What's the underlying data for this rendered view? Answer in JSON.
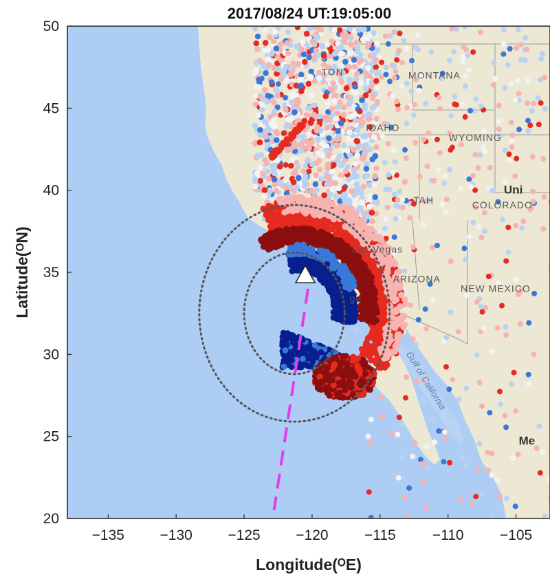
{
  "figure": {
    "title": "2017/08/24 UT:19:05:00",
    "xlabel": "Longitude(ᴼE)",
    "ylabel": "Latitude(ᴼN)"
  },
  "chart_data": {
    "type": "scatter",
    "title": "2017/08/24 UT:19:05:00",
    "xlabel": "Longitude(ᴼE)",
    "ylabel": "Latitude(ᴼN)",
    "xlim": [
      -138,
      -102.5
    ],
    "ylim": [
      20,
      50
    ],
    "xticks": [
      -135,
      -130,
      -125,
      -120,
      -115,
      -110,
      -105
    ],
    "yticks": [
      20,
      25,
      30,
      35,
      40,
      45,
      50
    ],
    "xtick_labels": [
      "−135",
      "−130",
      "−125",
      "−120",
      "−115",
      "−110",
      "−105"
    ],
    "ytick_labels": [
      "20",
      "25",
      "30",
      "35",
      "40",
      "45",
      "50"
    ],
    "grid": false,
    "marker": {
      "shape": "triangle",
      "lon": -120.5,
      "lat": 34.7,
      "color": "#ffffff"
    },
    "circles": [
      {
        "center_lon": -121.3,
        "center_lat": 32.5,
        "radius_lon": 7.0,
        "radius_lat": 6.6,
        "style": "dotted",
        "color": "#555555"
      },
      {
        "center_lon": -121.3,
        "center_lat": 32.5,
        "radius_lon": 3.7,
        "radius_lat": 3.7,
        "style": "dotted",
        "color": "#555555"
      }
    ],
    "track": {
      "points": [
        [
          -120.3,
          34.0
        ],
        [
          -122.8,
          20.5
        ]
      ],
      "style": "dashed",
      "color": "#e040e8"
    },
    "colors": {
      "positive_strong": "#8b0f0f",
      "positive": "#e52a20",
      "positive_light": "#f6b3b0",
      "neutral": "#f3f3f3",
      "negative_light": "#b8d2f2",
      "negative": "#3a78d8",
      "negative_strong": "#081f8f",
      "ocean": "#aecdf5",
      "land": "#ece8d4"
    }
  },
  "map": {
    "labels": [
      {
        "text": "TON",
        "lon": -118.5,
        "lat": 47.0,
        "style": "normal"
      },
      {
        "text": "MONTANA",
        "lon": -111.0,
        "lat": 46.8,
        "style": "normal"
      },
      {
        "text": "IDAHO",
        "lon": -114.8,
        "lat": 43.6,
        "style": "normal"
      },
      {
        "text": "WYOMING",
        "lon": -108.0,
        "lat": 43.0,
        "style": "normal"
      },
      {
        "text": "Uni",
        "lon": -105.2,
        "lat": 39.8,
        "style": "bold"
      },
      {
        "text": "COLORADO",
        "lon": -106.0,
        "lat": 38.9,
        "style": "normal"
      },
      {
        "text": "TAH",
        "lon": -111.8,
        "lat": 39.2,
        "style": "normal"
      },
      {
        "text": "Las Vegas",
        "lon": -115.2,
        "lat": 36.2,
        "style": "normal"
      },
      {
        "text": "ARIZONA",
        "lon": -112.3,
        "lat": 34.4,
        "style": "normal"
      },
      {
        "text": "NEW MEXICO",
        "lon": -106.5,
        "lat": 33.8,
        "style": "normal"
      },
      {
        "text": "go",
        "lon": -116.8,
        "lat": 33.2,
        "style": "normal"
      },
      {
        "text": "Gulf of California",
        "lon": -111.8,
        "lat": 28.3,
        "style": "water"
      },
      {
        "text": "Me",
        "lon": -104.2,
        "lat": 24.5,
        "style": "bold"
      }
    ]
  }
}
